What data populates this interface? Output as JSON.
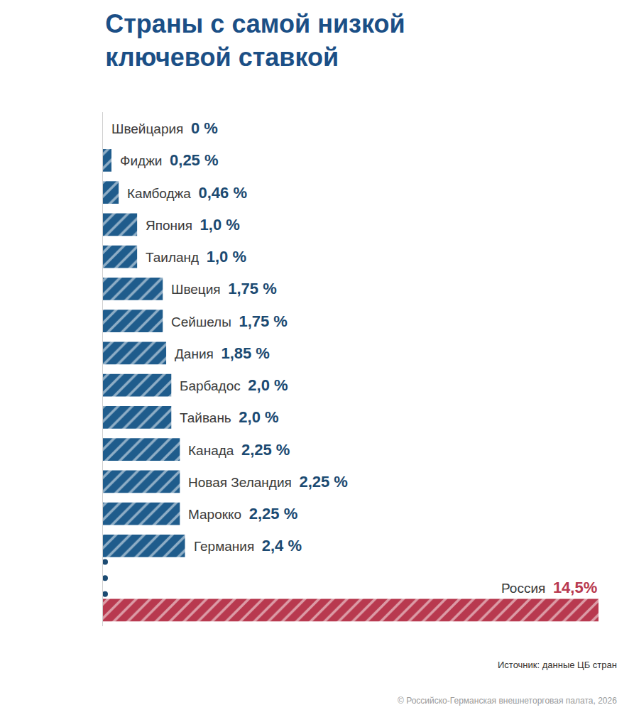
{
  "chart_data": {
    "type": "bar",
    "orientation": "horizontal",
    "title": "Страны с самой низкой ключевой ставкой",
    "categories": [
      "Швейцария",
      "Фиджи",
      "Камбоджа",
      "Япония",
      "Таиланд",
      "Швеция",
      "Сейшелы",
      "Дания",
      "Барбадос",
      "Тайвань",
      "Канада",
      "Новая Зеландия",
      "Марокко",
      "Германия",
      null,
      "Россия"
    ],
    "values": [
      0,
      0.25,
      0.46,
      1.0,
      1.0,
      1.75,
      1.75,
      1.85,
      2.0,
      2.0,
      2.25,
      2.25,
      2.25,
      2.4,
      null,
      14.5
    ],
    "value_labels": [
      "0 %",
      "0,25 %",
      "0,46 %",
      "1,0 %",
      "1,0 %",
      "1,75 %",
      "1,75 %",
      "1,85 %",
      "2,0 %",
      "2,0 %",
      "2,25 %",
      "2,25 %",
      "2,25 %",
      "2,4 %",
      null,
      "14,5%"
    ],
    "data_labels": true,
    "colors": [
      "#1f5c8c",
      "#1f5c8c",
      "#1f5c8c",
      "#1f5c8c",
      "#1f5c8c",
      "#1f5c8c",
      "#1f5c8c",
      "#1f5c8c",
      "#1f5c8c",
      "#1f5c8c",
      "#1f5c8c",
      "#1f5c8c",
      "#1f5c8c",
      "#1f5c8c",
      "#1f5c8c",
      "#b8394f"
    ],
    "xlim": [
      0,
      14.5
    ],
    "grid": false,
    "tick_labels": false,
    "annotations": [
      "Источник: данные ЦБ стран",
      "© Российско-Германская внешнеторговая палата, 2026"
    ]
  }
}
